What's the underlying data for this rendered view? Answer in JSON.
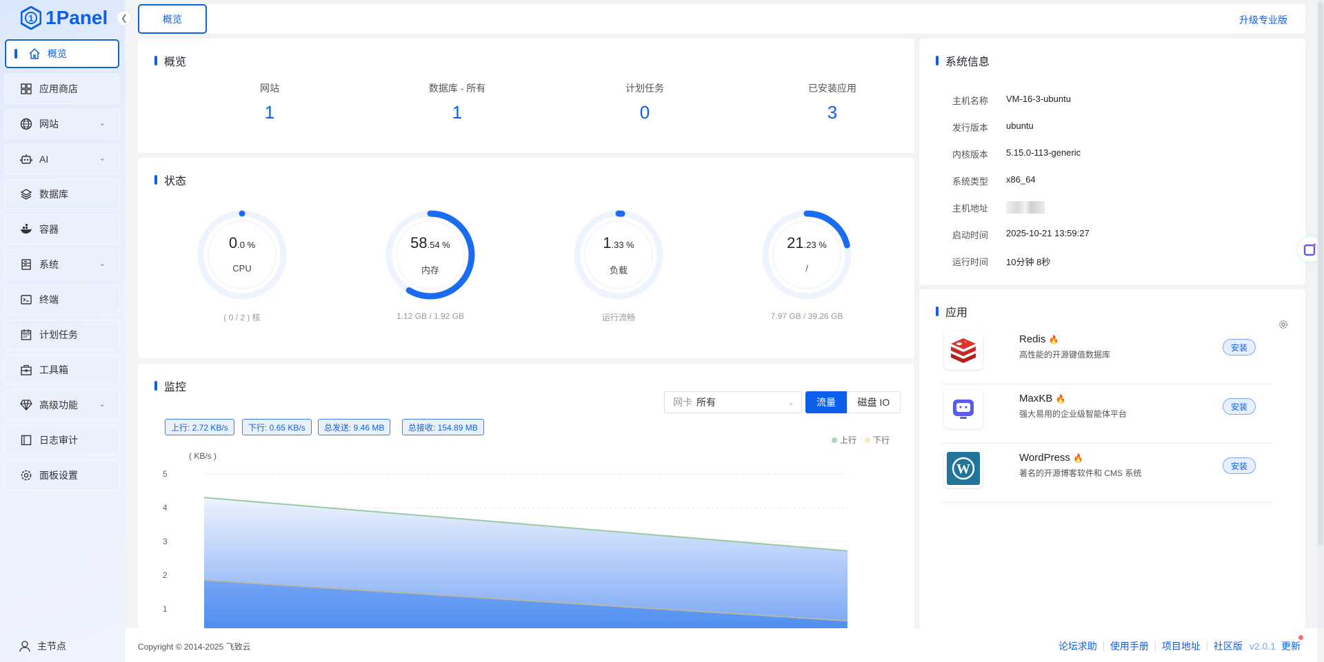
{
  "brand": {
    "name": "1Panel",
    "accent": "#0c5fe8"
  },
  "sidebar": {
    "items": [
      {
        "label": "概览",
        "icon": "home-icon",
        "active": true
      },
      {
        "label": "应用商店",
        "icon": "grid-icon"
      },
      {
        "label": "网站",
        "icon": "globe-icon",
        "expandable": true
      },
      {
        "label": "AI",
        "icon": "robot-icon",
        "expandable": true
      },
      {
        "label": "数据库",
        "icon": "layers-icon"
      },
      {
        "label": "容器",
        "icon": "docker-icon"
      },
      {
        "label": "系统",
        "icon": "server-icon",
        "expandable": true
      },
      {
        "label": "终端",
        "icon": "terminal-icon"
      },
      {
        "label": "计划任务",
        "icon": "calendar-icon"
      },
      {
        "label": "工具箱",
        "icon": "toolbox-icon"
      },
      {
        "label": "高级功能",
        "icon": "diamond-icon",
        "expandable": true
      },
      {
        "label": "日志审计",
        "icon": "log-icon"
      },
      {
        "label": "面板设置",
        "icon": "gear-icon"
      }
    ],
    "node": "主节点"
  },
  "topbar": {
    "tab": "概览",
    "upgrade": "升级专业版"
  },
  "overview": {
    "title": "概览",
    "items": [
      {
        "label": "网站",
        "value": "1"
      },
      {
        "label": "数据库 - 所有",
        "value": "1"
      },
      {
        "label": "计划任务",
        "value": "0"
      },
      {
        "label": "已安装应用",
        "value": "3"
      }
    ]
  },
  "status": {
    "title": "状态",
    "gauges": [
      {
        "int": "0",
        "dec": ".0 %",
        "label": "CPU",
        "sub": "( 0 / 2 ) 核",
        "percent": 0.0
      },
      {
        "int": "58",
        "dec": ".54 %",
        "label": "内存",
        "sub": "1.12 GB / 1.92 GB",
        "percent": 58.54
      },
      {
        "int": "1",
        "dec": ".33 %",
        "label": "负载",
        "sub": "运行流畅",
        "percent": 1.33
      },
      {
        "int": "21",
        "dec": ".23 %",
        "label": "/",
        "sub": "7.97 GB / 39.26 GB",
        "percent": 21.23
      }
    ]
  },
  "monitor": {
    "title": "监控",
    "nic_label": "网卡",
    "nic_value": "所有",
    "tabs": [
      "流量",
      "磁盘 IO"
    ],
    "badges": [
      "上行: 2.72 KB/s",
      "下行: 0.65 KB/s",
      "总发送: 9.46 MB",
      "总接收: 154.89 MB"
    ]
  },
  "chart_data": {
    "type": "area",
    "ylabel": "( KB/s )",
    "yticks": [
      "5",
      "4",
      "3",
      "2",
      "1"
    ],
    "ylim": [
      0,
      5
    ],
    "grid": true,
    "legend": "top-right",
    "series": [
      {
        "name": "上行",
        "values": [
          4.3,
          2.72
        ],
        "color": "#91cc75"
      },
      {
        "name": "下行",
        "values": [
          1.85,
          0.65
        ],
        "color": "#fac858"
      }
    ]
  },
  "sysinfo": {
    "title": "系统信息",
    "rows": [
      {
        "k": "主机名称",
        "v": "VM-16-3-ubuntu"
      },
      {
        "k": "发行版本",
        "v": "ubuntu"
      },
      {
        "k": "内核版本",
        "v": "5.15.0-113-generic"
      },
      {
        "k": "系统类型",
        "v": "x86_64"
      },
      {
        "k": "主机地址",
        "v": ""
      },
      {
        "k": "启动时间",
        "v": "2025-10-21 13:59:27"
      },
      {
        "k": "运行时间",
        "v": "10分钟 8秒"
      }
    ]
  },
  "apps": {
    "title": "应用",
    "install": "安装",
    "list": [
      {
        "name": "Redis",
        "desc": "高性能的开源键值数据库"
      },
      {
        "name": "MaxKB",
        "desc": "强大易用的企业级智能体平台"
      },
      {
        "name": "WordPress",
        "desc": "著名的开源博客软件和 CMS 系统"
      }
    ]
  },
  "footer": {
    "copyright": "Copyright © 2014-2025 飞致云",
    "links": [
      "论坛求助",
      "使用手册",
      "项目地址",
      "社区版"
    ],
    "version": "v2.0.1",
    "update": "更新"
  }
}
